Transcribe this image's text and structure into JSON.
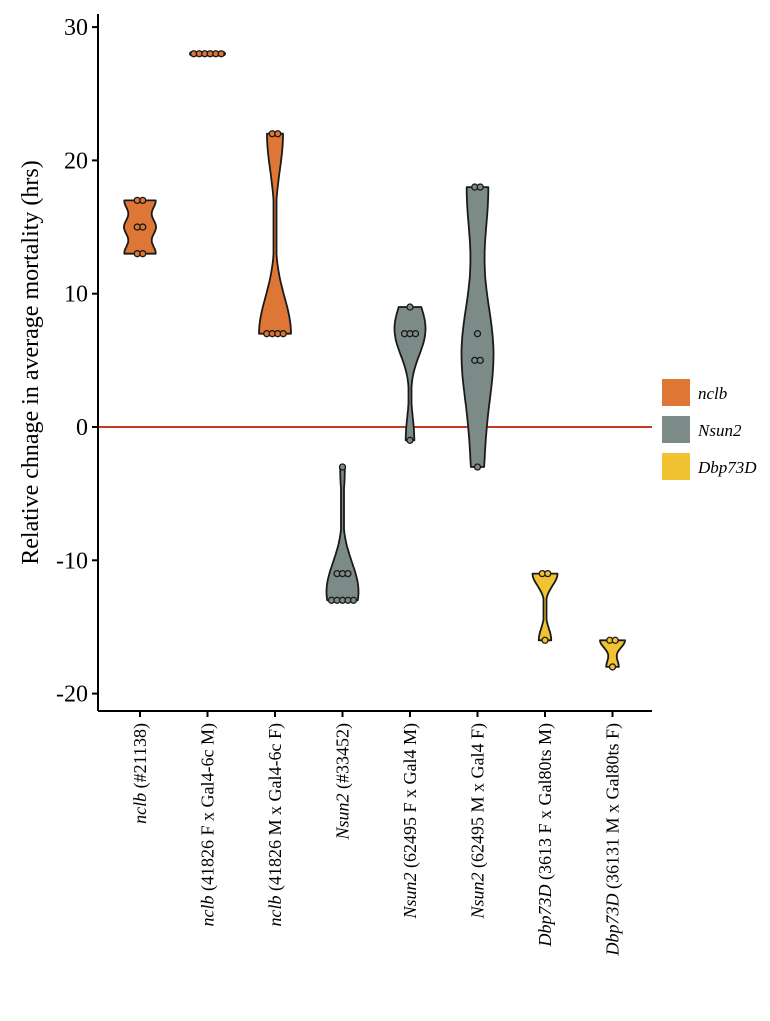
{
  "chart_data": {
    "type": "violin",
    "ylabel": "Relative chnage in average mortality (hrs)",
    "xlabel": "",
    "ylim": [
      -21,
      31
    ],
    "yticks": [
      30,
      20,
      10,
      0,
      -10,
      -20
    ],
    "ytick_labels": [
      "30",
      "20",
      "10",
      "0",
      "-10",
      "-20"
    ],
    "reference_line": {
      "y": 0,
      "color": "#c23b22"
    },
    "colors": {
      "nclb": "#de7635",
      "Nsun2": "#7d8b88",
      "Dbp73D": "#f1c232"
    },
    "legend": {
      "position": "right",
      "entries": [
        {
          "label": "nclb",
          "color": "#de7635"
        },
        {
          "label": "Nsun2",
          "color": "#7d8b88"
        },
        {
          "label": "Dbp73D",
          "color": "#f1c232"
        }
      ]
    },
    "groups": [
      {
        "gene": "nclb",
        "label_italic": "nclb",
        "label_rest": " (#21138)",
        "color": "#de7635",
        "points": [
          17,
          17,
          15,
          15,
          13,
          13
        ]
      },
      {
        "gene": "nclb",
        "label_italic": "nclb",
        "label_rest": " (41826 F x Gal4-6c M)",
        "color": "#de7635",
        "points": [
          28,
          28,
          28,
          28,
          28,
          28
        ]
      },
      {
        "gene": "nclb",
        "label_italic": "nclb",
        "label_rest": " (41826 M x Gal4-6c F)",
        "color": "#de7635",
        "points": [
          22,
          22,
          7,
          7,
          7,
          7
        ]
      },
      {
        "gene": "Nsun2",
        "label_italic": "Nsun2",
        "label_rest": " (#33452)",
        "color": "#7d8b88",
        "points": [
          -3,
          -11,
          -11,
          -11,
          -13,
          -13,
          -13,
          -13,
          -13
        ]
      },
      {
        "gene": "Nsun2",
        "label_italic": "Nsun2",
        "label_rest": " (62495 F x Gal4 M)",
        "color": "#7d8b88",
        "points": [
          9,
          7,
          7,
          7,
          -1
        ]
      },
      {
        "gene": "Nsun2",
        "label_italic": "Nsun2",
        "label_rest": " (62495 M x Gal4 F)",
        "color": "#7d8b88",
        "points": [
          18,
          18,
          7,
          5,
          5,
          -3
        ]
      },
      {
        "gene": "Dbp73D",
        "label_italic": "Dbp73D",
        "label_rest": " (3613 F x Gal80ts M)",
        "color": "#f1c232",
        "points": [
          -11,
          -11,
          -16
        ]
      },
      {
        "gene": "Dbp73D",
        "label_italic": "Dbp73D",
        "label_rest": " (36131 M x Gal80ts F)",
        "color": "#f1c232",
        "points": [
          -16,
          -16,
          -18
        ]
      }
    ]
  }
}
